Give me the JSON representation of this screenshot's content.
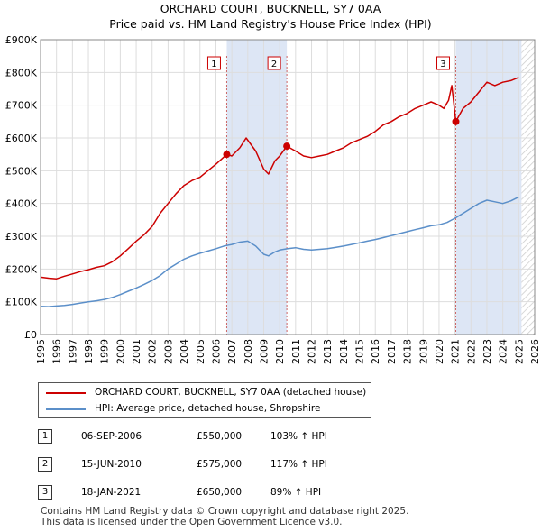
{
  "chart_data": {
    "type": "line",
    "title": "ORCHARD COURT, BUCKNELL, SY7 0AA",
    "subtitle": "Price paid vs. HM Land Registry's House Price Index (HPI)",
    "ylim": [
      0,
      900000
    ],
    "xlim": [
      1995,
      2026
    ],
    "y_ticks": [
      {
        "value": 0,
        "label": "£0"
      },
      {
        "value": 100000,
        "label": "£100K"
      },
      {
        "value": 200000,
        "label": "£200K"
      },
      {
        "value": 300000,
        "label": "£300K"
      },
      {
        "value": 400000,
        "label": "£400K"
      },
      {
        "value": 500000,
        "label": "£500K"
      },
      {
        "value": 600000,
        "label": "£600K"
      },
      {
        "value": 700000,
        "label": "£700K"
      },
      {
        "value": 800000,
        "label": "£800K"
      },
      {
        "value": 900000,
        "label": "£900K"
      }
    ],
    "x_ticks": [
      "1995",
      "1996",
      "1997",
      "1998",
      "1999",
      "2000",
      "2001",
      "2002",
      "2003",
      "2004",
      "2005",
      "2006",
      "2007",
      "2008",
      "2009",
      "2010",
      "2011",
      "2012",
      "2013",
      "2014",
      "2015",
      "2016",
      "2017",
      "2018",
      "2019",
      "2020",
      "2021",
      "2022",
      "2023",
      "2024",
      "2025",
      "2026"
    ],
    "grid": true,
    "forecast_start": 2025.17,
    "series": [
      {
        "name": "ORCHARD COURT, BUCKNELL, SY7 0AA (detached house)",
        "color": "#cc0000",
        "x": [
          1995.0,
          1995.5,
          1996.0,
          1996.5,
          1997.0,
          1997.5,
          1998.0,
          1998.5,
          1999.0,
          1999.5,
          2000.0,
          2000.5,
          2001.0,
          2001.5,
          2002.0,
          2002.5,
          2003.0,
          2003.5,
          2004.0,
          2004.5,
          2005.0,
          2005.5,
          2006.0,
          2006.68,
          2007.0,
          2007.5,
          2007.9,
          2008.5,
          2009.0,
          2009.3,
          2009.7,
          2010.0,
          2010.45,
          2011.0,
          2011.5,
          2012.0,
          2012.5,
          2013.0,
          2013.5,
          2014.0,
          2014.5,
          2015.0,
          2015.5,
          2016.0,
          2016.5,
          2017.0,
          2017.5,
          2018.0,
          2018.5,
          2019.0,
          2019.5,
          2020.0,
          2020.3,
          2020.6,
          2020.8,
          2021.05,
          2021.5,
          2022.0,
          2022.5,
          2023.0,
          2023.5,
          2024.0,
          2024.5,
          2025.0
        ],
        "values": [
          175000,
          172000,
          170000,
          178000,
          185000,
          192000,
          198000,
          205000,
          210000,
          222000,
          240000,
          262000,
          285000,
          305000,
          330000,
          370000,
          400000,
          430000,
          455000,
          470000,
          480000,
          500000,
          520000,
          550000,
          545000,
          570000,
          600000,
          560000,
          505000,
          490000,
          530000,
          545000,
          575000,
          560000,
          545000,
          540000,
          545000,
          550000,
          560000,
          570000,
          585000,
          595000,
          605000,
          620000,
          640000,
          650000,
          665000,
          675000,
          690000,
          700000,
          710000,
          700000,
          690000,
          715000,
          760000,
          650000,
          690000,
          710000,
          740000,
          770000,
          760000,
          770000,
          775000,
          785000
        ]
      },
      {
        "name": "HPI: Average price, detached house, Shropshire",
        "color": "#5b8fc9",
        "x": [
          1995.0,
          1995.5,
          1996.0,
          1996.5,
          1997.0,
          1997.5,
          1998.0,
          1998.5,
          1999.0,
          1999.5,
          2000.0,
          2000.5,
          2001.0,
          2001.5,
          2002.0,
          2002.5,
          2003.0,
          2003.5,
          2004.0,
          2004.5,
          2005.0,
          2005.5,
          2006.0,
          2006.5,
          2007.0,
          2007.5,
          2008.0,
          2008.5,
          2009.0,
          2009.3,
          2009.7,
          2010.0,
          2010.5,
          2011.0,
          2011.5,
          2012.0,
          2012.5,
          2013.0,
          2013.5,
          2014.0,
          2014.5,
          2015.0,
          2015.5,
          2016.0,
          2016.5,
          2017.0,
          2017.5,
          2018.0,
          2018.5,
          2019.0,
          2019.5,
          2020.0,
          2020.5,
          2021.0,
          2021.5,
          2022.0,
          2022.5,
          2023.0,
          2023.5,
          2024.0,
          2024.5,
          2025.0
        ],
        "values": [
          86000,
          85000,
          87000,
          89000,
          92000,
          96000,
          100000,
          103000,
          107000,
          113000,
          122000,
          132000,
          142000,
          153000,
          165000,
          180000,
          200000,
          215000,
          230000,
          240000,
          248000,
          255000,
          262000,
          270000,
          275000,
          282000,
          285000,
          270000,
          245000,
          240000,
          252000,
          258000,
          262000,
          265000,
          260000,
          258000,
          260000,
          262000,
          266000,
          270000,
          275000,
          280000,
          285000,
          290000,
          296000,
          302000,
          308000,
          314000,
          320000,
          326000,
          332000,
          335000,
          342000,
          355000,
          370000,
          385000,
          400000,
          410000,
          405000,
          400000,
          408000,
          420000
        ]
      }
    ],
    "sales": [
      {
        "id": "1",
        "x": 2006.68,
        "value": 550000
      },
      {
        "id": "2",
        "x": 2010.45,
        "value": 575000
      },
      {
        "id": "3",
        "x": 2021.05,
        "value": 650000
      }
    ]
  },
  "legend": {
    "property_label": "ORCHARD COURT, BUCKNELL, SY7 0AA (detached house)",
    "hpi_label": "HPI: Average price, detached house, Shropshire"
  },
  "transactions": [
    {
      "num": "1",
      "date": "06-SEP-2006",
      "price": "£550,000",
      "hpi": "103% ↑ HPI"
    },
    {
      "num": "2",
      "date": "15-JUN-2010",
      "price": "£575,000",
      "hpi": "117% ↑ HPI"
    },
    {
      "num": "3",
      "date": "18-JAN-2021",
      "price": "£650,000",
      "hpi": "89% ↑ HPI"
    }
  ],
  "footer": {
    "line1": "Contains HM Land Registry data © Crown copyright and database right 2025.",
    "line2": "This data is licensed under the Open Government Licence v3.0."
  },
  "colors": {
    "property": "#cc0000",
    "hpi": "#5b8fc9",
    "band": "#dde6f5",
    "forecast": "#e8e8e8"
  }
}
